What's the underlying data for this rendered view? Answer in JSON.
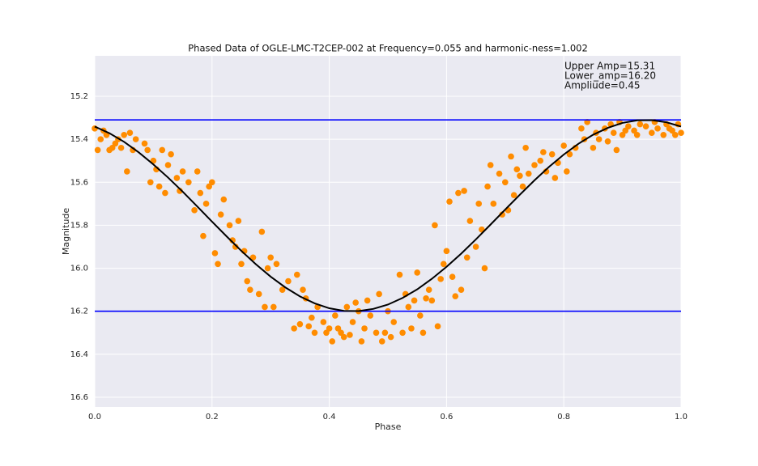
{
  "chart_data": {
    "type": "scatter",
    "title": "Phased Data of OGLE-LMC-T2CEP-002 at Frequency=0.055 and harmonic-ness=1.002",
    "xlabel": "Phase",
    "ylabel": "Magnitude",
    "xlim": [
      0,
      1
    ],
    "ylim": [
      16.645,
      15.012
    ],
    "xticks": [
      {
        "value": 0,
        "label": "0.0"
      },
      0.2,
      0.4,
      0.6,
      0.8,
      {
        "value": 1,
        "label": "1.0"
      }
    ],
    "yticks": [
      15.2,
      15.4,
      15.6,
      15.8,
      {
        "value": 16,
        "label": "16.0"
      },
      16.2,
      16.4,
      16.6
    ],
    "grid": true,
    "annotations": [
      "Upper Amp=15.31",
      "Lower_amp=16.20",
      "Ampliude=0.45"
    ],
    "hlines": [
      {
        "value": 15.31,
        "color": "#0000ff"
      },
      {
        "value": 16.2,
        "color": "#0000ff"
      }
    ],
    "series": [
      {
        "kind": "points",
        "color": "#ff8c00",
        "x": [
          0.0,
          0.005,
          0.01,
          0.015,
          0.02,
          0.025,
          0.03,
          0.035,
          0.04,
          0.045,
          0.05,
          0.055,
          0.06,
          0.065,
          0.07,
          0.085,
          0.09,
          0.095,
          0.1,
          0.105,
          0.11,
          0.115,
          0.12,
          0.125,
          0.13,
          0.14,
          0.145,
          0.15,
          0.16,
          0.17,
          0.175,
          0.18,
          0.185,
          0.19,
          0.195,
          0.2,
          0.205,
          0.21,
          0.215,
          0.22,
          0.23,
          0.235,
          0.24,
          0.245,
          0.25,
          0.255,
          0.26,
          0.265,
          0.27,
          0.28,
          0.285,
          0.29,
          0.295,
          0.3,
          0.305,
          0.31,
          0.32,
          0.33,
          0.34,
          0.345,
          0.35,
          0.355,
          0.36,
          0.365,
          0.37,
          0.375,
          0.38,
          0.39,
          0.395,
          0.4,
          0.405,
          0.41,
          0.415,
          0.42,
          0.425,
          0.43,
          0.435,
          0.44,
          0.445,
          0.45,
          0.455,
          0.46,
          0.465,
          0.47,
          0.48,
          0.485,
          0.49,
          0.495,
          0.5,
          0.505,
          0.51,
          0.52,
          0.525,
          0.53,
          0.535,
          0.54,
          0.545,
          0.55,
          0.555,
          0.56,
          0.565,
          0.57,
          0.575,
          0.58,
          0.585,
          0.59,
          0.595,
          0.6,
          0.605,
          0.61,
          0.615,
          0.62,
          0.625,
          0.63,
          0.635,
          0.64,
          0.65,
          0.655,
          0.66,
          0.665,
          0.67,
          0.675,
          0.68,
          0.69,
          0.695,
          0.7,
          0.705,
          0.71,
          0.715,
          0.72,
          0.725,
          0.73,
          0.735,
          0.74,
          0.75,
          0.76,
          0.765,
          0.77,
          0.78,
          0.785,
          0.79,
          0.8,
          0.805,
          0.81,
          0.82,
          0.83,
          0.835,
          0.84,
          0.85,
          0.855,
          0.86,
          0.87,
          0.875,
          0.88,
          0.885,
          0.89,
          0.895,
          0.9,
          0.905,
          0.91,
          0.92,
          0.925,
          0.93,
          0.94,
          0.95,
          0.955,
          0.96,
          0.97,
          0.975,
          0.98,
          0.985,
          0.99,
          0.995,
          1.0
        ],
        "values": [
          15.35,
          15.45,
          15.4,
          15.36,
          15.38,
          15.45,
          15.44,
          15.42,
          15.4,
          15.44,
          15.38,
          15.55,
          15.37,
          15.45,
          15.4,
          15.42,
          15.45,
          15.6,
          15.5,
          15.54,
          15.62,
          15.45,
          15.65,
          15.52,
          15.47,
          15.58,
          15.64,
          15.55,
          15.6,
          15.73,
          15.55,
          15.65,
          15.85,
          15.7,
          15.62,
          15.6,
          15.93,
          15.98,
          15.75,
          15.68,
          15.8,
          15.87,
          15.9,
          15.78,
          15.98,
          15.92,
          16.06,
          16.1,
          15.95,
          16.12,
          15.83,
          16.18,
          16.0,
          15.95,
          16.18,
          15.98,
          16.1,
          16.06,
          16.28,
          16.03,
          16.26,
          16.1,
          16.14,
          16.27,
          16.23,
          16.3,
          16.18,
          16.25,
          16.3,
          16.28,
          16.34,
          16.22,
          16.28,
          16.3,
          16.32,
          16.18,
          16.31,
          16.25,
          16.16,
          16.2,
          16.34,
          16.28,
          16.15,
          16.22,
          16.3,
          16.12,
          16.34,
          16.3,
          16.2,
          16.32,
          16.25,
          16.03,
          16.3,
          16.12,
          16.18,
          16.28,
          16.15,
          16.02,
          16.22,
          16.3,
          16.14,
          16.1,
          16.15,
          15.8,
          16.27,
          16.05,
          15.98,
          15.92,
          15.69,
          16.04,
          16.13,
          15.65,
          16.1,
          15.64,
          15.95,
          15.78,
          15.9,
          15.7,
          15.82,
          16.0,
          15.62,
          15.52,
          15.7,
          15.56,
          15.75,
          15.6,
          15.73,
          15.48,
          15.66,
          15.54,
          15.57,
          15.62,
          15.44,
          15.56,
          15.52,
          15.5,
          15.46,
          15.55,
          15.47,
          15.58,
          15.51,
          15.43,
          15.55,
          15.47,
          15.44,
          15.35,
          15.4,
          15.32,
          15.44,
          15.37,
          15.4,
          15.35,
          15.41,
          15.33,
          15.37,
          15.45,
          15.32,
          15.38,
          15.36,
          15.34,
          15.36,
          15.38,
          15.33,
          15.34,
          15.37,
          15.32,
          15.35,
          15.38,
          15.33,
          15.35,
          15.36,
          15.38,
          15.33,
          15.37
        ]
      },
      {
        "kind": "line",
        "color": "#000000",
        "x": [
          0,
          0.025,
          0.05,
          0.075,
          0.1,
          0.125,
          0.15,
          0.175,
          0.2,
          0.225,
          0.25,
          0.275,
          0.3,
          0.325,
          0.35,
          0.375,
          0.4,
          0.425,
          0.45,
          0.475,
          0.5,
          0.525,
          0.55,
          0.575,
          0.6,
          0.625,
          0.65,
          0.675,
          0.7,
          0.725,
          0.75,
          0.775,
          0.8,
          0.825,
          0.85,
          0.875,
          0.9,
          0.925,
          0.95,
          0.975,
          1
        ],
        "values": [
          15.341,
          15.372,
          15.412,
          15.461,
          15.517,
          15.578,
          15.644,
          15.713,
          15.783,
          15.852,
          15.919,
          15.982,
          16.039,
          16.089,
          16.131,
          16.163,
          16.186,
          16.198,
          16.199,
          16.189,
          16.169,
          16.138,
          16.098,
          16.049,
          15.993,
          15.932,
          15.866,
          15.797,
          15.727,
          15.658,
          15.591,
          15.528,
          15.471,
          15.421,
          15.379,
          15.347,
          15.324,
          15.312,
          15.311,
          15.321,
          15.341
        ]
      }
    ]
  }
}
